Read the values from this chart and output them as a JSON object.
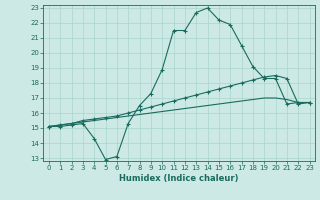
{
  "xlabel": "Humidex (Indice chaleur)",
  "bg_color": "#cce9e5",
  "grid_color": "#aad4ce",
  "line_color": "#1a6b5e",
  "xlim": [
    -0.5,
    23.5
  ],
  "ylim": [
    12.8,
    23.2
  ],
  "xticks": [
    0,
    1,
    2,
    3,
    4,
    5,
    6,
    7,
    8,
    9,
    10,
    11,
    12,
    13,
    14,
    15,
    16,
    17,
    18,
    19,
    20,
    21,
    22,
    23
  ],
  "yticks": [
    13,
    14,
    15,
    16,
    17,
    18,
    19,
    20,
    21,
    22,
    23
  ],
  "line1_x": [
    0,
    1,
    2,
    3,
    4,
    5,
    6,
    7,
    8,
    9,
    10,
    11,
    12,
    13,
    14,
    15,
    16,
    17,
    18,
    19,
    20,
    21,
    22,
    23
  ],
  "line1_y": [
    15.1,
    15.1,
    15.2,
    15.3,
    14.3,
    12.9,
    13.1,
    15.3,
    16.5,
    17.3,
    18.9,
    21.5,
    21.5,
    22.7,
    23.0,
    22.2,
    21.9,
    20.5,
    19.1,
    18.3,
    18.3,
    16.6,
    16.7,
    16.7
  ],
  "line2_x": [
    0,
    1,
    2,
    3,
    4,
    5,
    6,
    7,
    8,
    9,
    10,
    11,
    12,
    13,
    14,
    15,
    16,
    17,
    18,
    19,
    20,
    21,
    22,
    23
  ],
  "line2_y": [
    15.1,
    15.2,
    15.3,
    15.5,
    15.6,
    15.7,
    15.8,
    16.0,
    16.2,
    16.4,
    16.6,
    16.8,
    17.0,
    17.2,
    17.4,
    17.6,
    17.8,
    18.0,
    18.2,
    18.4,
    18.5,
    18.3,
    16.6,
    16.7
  ],
  "line3_x": [
    0,
    1,
    2,
    3,
    4,
    5,
    6,
    7,
    8,
    9,
    10,
    11,
    12,
    13,
    14,
    15,
    16,
    17,
    18,
    19,
    20,
    21,
    22,
    23
  ],
  "line3_y": [
    15.1,
    15.2,
    15.3,
    15.4,
    15.5,
    15.6,
    15.7,
    15.8,
    15.9,
    16.0,
    16.1,
    16.2,
    16.3,
    16.4,
    16.5,
    16.6,
    16.7,
    16.8,
    16.9,
    17.0,
    17.0,
    16.9,
    16.7,
    16.7
  ]
}
